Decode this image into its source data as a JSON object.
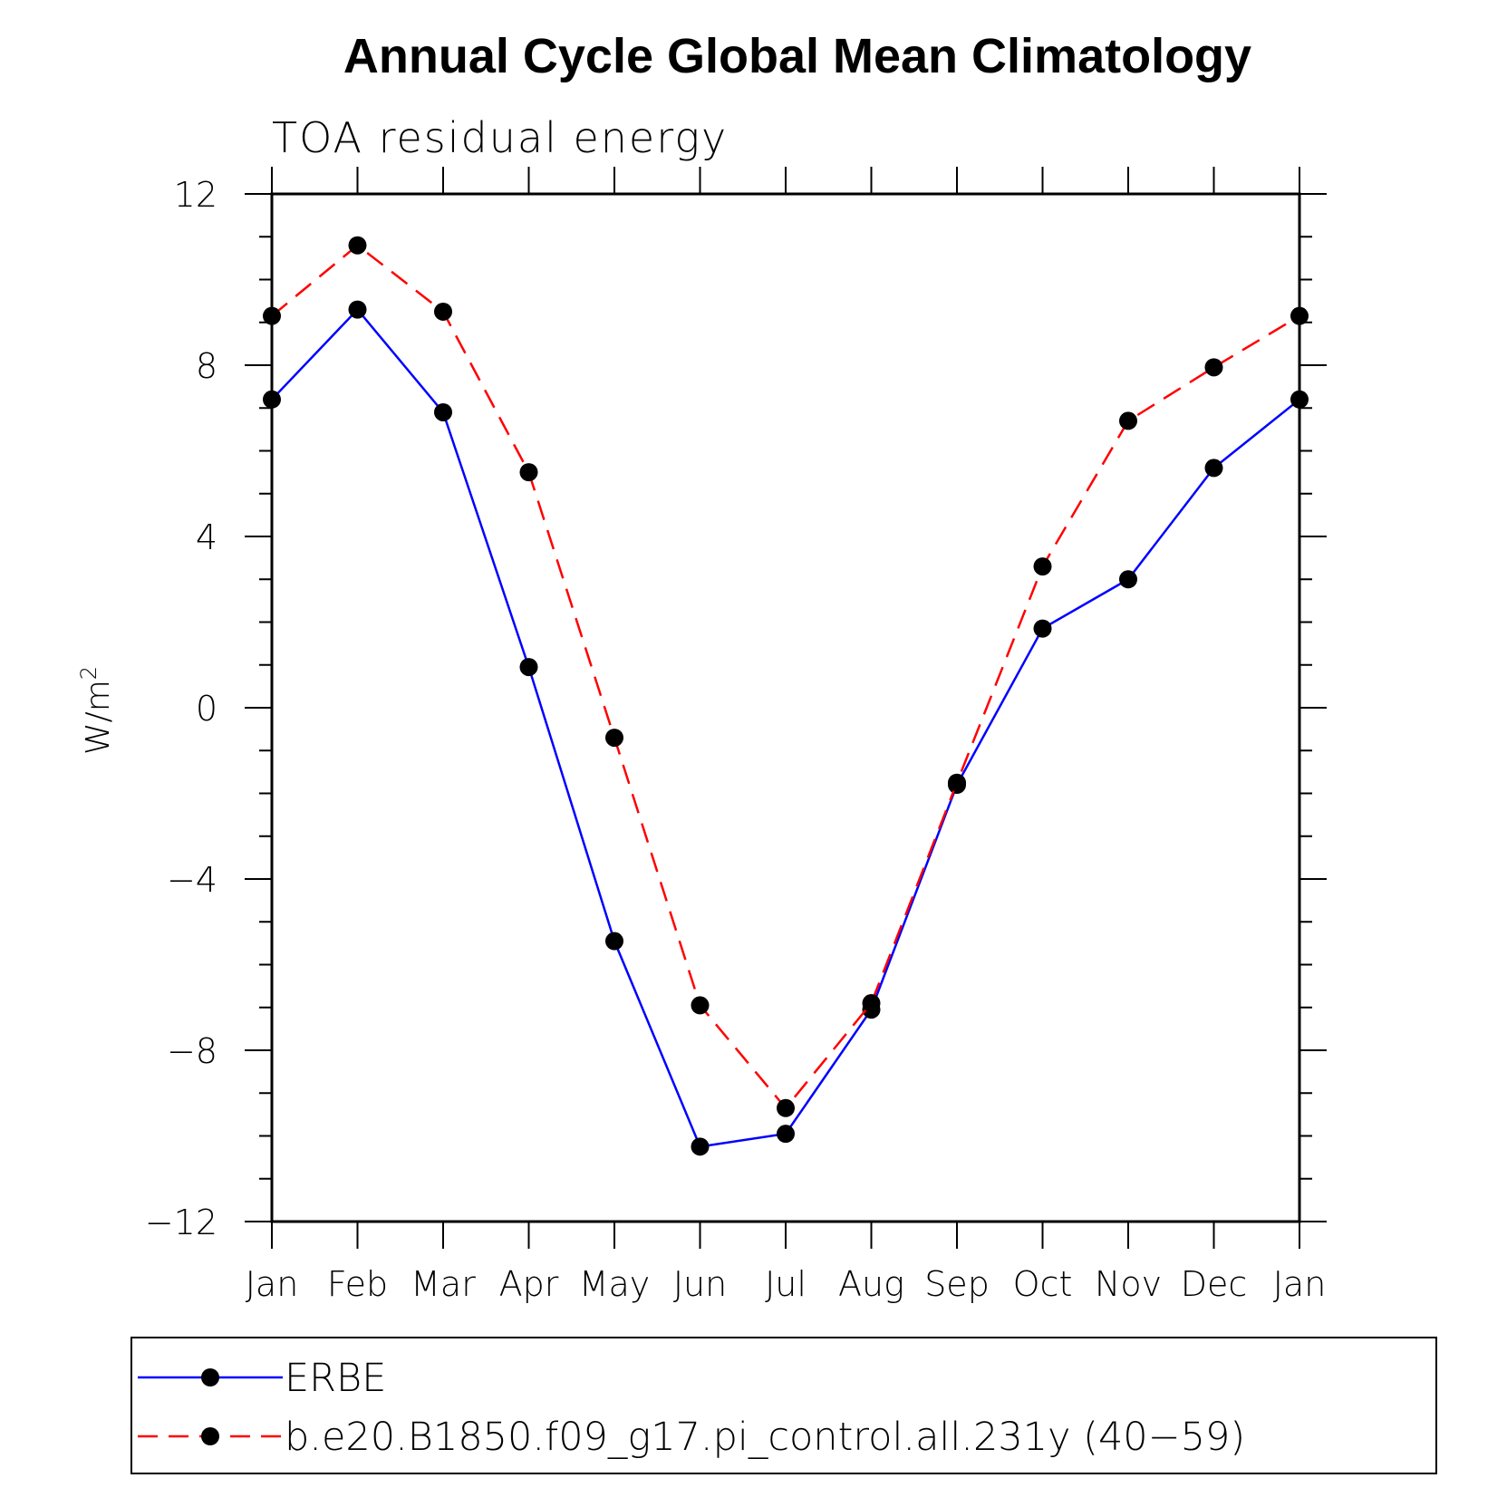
{
  "chart_data": {
    "type": "line",
    "title": "Annual Cycle Global Mean Climatology",
    "subtitle": "TOA residual energy",
    "xlabel": "",
    "ylabel": "W/m",
    "ylabel_superscript": "2",
    "categories": [
      "Jan",
      "Feb",
      "Mar",
      "Apr",
      "May",
      "Jun",
      "Jul",
      "Aug",
      "Sep",
      "Oct",
      "Nov",
      "Dec",
      "Jan"
    ],
    "ylim": [
      -12,
      12
    ],
    "yticks": [
      12,
      8,
      4,
      0,
      -4,
      -8,
      -12
    ],
    "ytick_labels": [
      "12",
      "8",
      "4",
      "0",
      "−4",
      "−8",
      "−12"
    ],
    "y_minor_step": 1,
    "grid": false,
    "legend_position": "bottom",
    "series": [
      {
        "name": "ERBE",
        "color": "#0000ff",
        "dash": "solid",
        "marker": "filled-circle",
        "values": [
          7.2,
          9.3,
          6.9,
          0.95,
          -5.45,
          -10.25,
          -9.95,
          -7.05,
          -1.8,
          1.85,
          3.0,
          5.6,
          7.2
        ]
      },
      {
        "name": "b.e20.B1850.f09_g17.pi_control.all.231y (40−59)",
        "color": "#ff0000",
        "dash": "dashed",
        "marker": "filled-circle",
        "values": [
          9.15,
          10.8,
          9.25,
          5.5,
          -0.7,
          -6.95,
          -9.35,
          -6.9,
          -1.75,
          3.3,
          6.7,
          7.95,
          9.15
        ]
      }
    ]
  }
}
